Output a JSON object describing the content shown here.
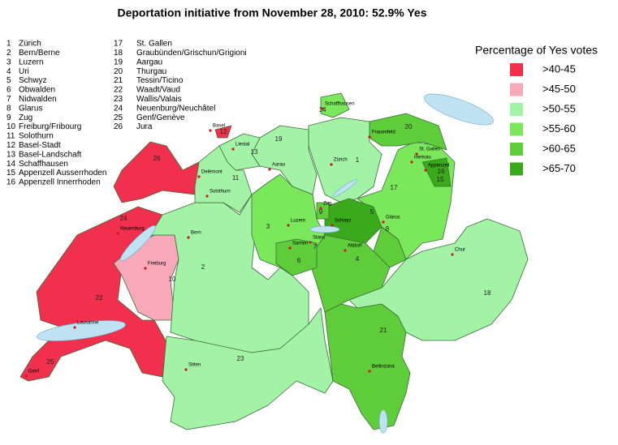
{
  "title": "Deportation initiative from November 28, 2010: 52.9% Yes",
  "canton_list": [
    {
      "number": 1,
      "name": "Zürich"
    },
    {
      "number": 2,
      "name": "Bern/Berne"
    },
    {
      "number": 3,
      "name": "Luzern"
    },
    {
      "number": 4,
      "name": "Uri"
    },
    {
      "number": 5,
      "name": "Schwyz"
    },
    {
      "number": 6,
      "name": "Obwalden"
    },
    {
      "number": 7,
      "name": "Nidwalden"
    },
    {
      "number": 8,
      "name": "Glarus"
    },
    {
      "number": 9,
      "name": "Zug"
    },
    {
      "number": 10,
      "name": "Freiburg/Fribourg"
    },
    {
      "number": 11,
      "name": "Solothurn"
    },
    {
      "number": 12,
      "name": "Basel-Stadt"
    },
    {
      "number": 13,
      "name": "Basel-Landschaft"
    },
    {
      "number": 14,
      "name": "Schaffhausen"
    },
    {
      "number": 15,
      "name": "Appenzell Ausserrhoden"
    },
    {
      "number": 16,
      "name": "Appenzell Innerrhoden"
    },
    {
      "number": 17,
      "name": "St. Gallen"
    },
    {
      "number": 18,
      "name": "Graubünden/Grischun/Grigioni"
    },
    {
      "number": 19,
      "name": "Aargau"
    },
    {
      "number": 20,
      "name": "Thurgau"
    },
    {
      "number": 21,
      "name": "Tessin/Ticino"
    },
    {
      "number": 22,
      "name": "Waadt/Vaud"
    },
    {
      "number": 23,
      "name": "Wallis/Valais"
    },
    {
      "number": 24,
      "name": "Neuenburg/Neuchâtel"
    },
    {
      "number": 25,
      "name": "Genf/Genève"
    },
    {
      "number": 26,
      "name": "Jura"
    }
  ],
  "legend": {
    "title": "Percentage of Yes votes",
    "items": [
      {
        "label": ">40-45",
        "color": "#f0304c"
      },
      {
        "label": ">45-50",
        "color": "#f7a9b9"
      },
      {
        "label": ">50-55",
        "color": "#a3f3a6"
      },
      {
        "label": ">55-60",
        "color": "#7ae85a"
      },
      {
        "label": ">60-65",
        "color": "#5fcc3a"
      },
      {
        "label": ">65-70",
        "color": "#3aa91b"
      }
    ]
  },
  "cities": [
    "Basel",
    "Liestal",
    "Delémont",
    "Solothurn",
    "Aarau",
    "Zürich",
    "Frauenfeld",
    "Schaffhausen",
    "St. Gallen",
    "Herisau",
    "Appenzell",
    "Zug",
    "Luzern",
    "Schwyz",
    "Glarus",
    "Sarnen",
    "Stans",
    "Altdorf",
    "Chur",
    "Bern",
    "Neuenburg",
    "Freiburg",
    "Lausanne",
    "Genf",
    "Sitten",
    "Bellinzona"
  ]
}
